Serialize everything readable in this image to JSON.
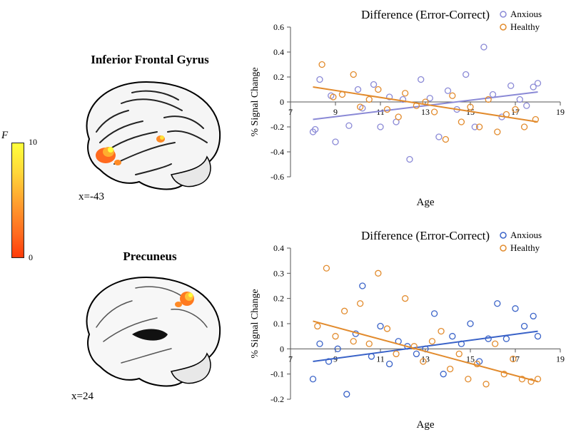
{
  "colorbar": {
    "label": "F",
    "min": 0,
    "max": 10.0,
    "gradient_top": "#ffff3b",
    "gradient_bottom": "#ff3b0a"
  },
  "brain_panels": [
    {
      "title": "Inferior Frontal Gyrus",
      "caption": "x=-43",
      "title_fontsize": 17,
      "caption_fontsize": 15
    },
    {
      "title": "Precuneus",
      "caption": "x=24",
      "title_fontsize": 17,
      "caption_fontsize": 15
    }
  ],
  "charts": [
    {
      "title": "Difference (Error-Correct)",
      "xlabel": "Age",
      "ylabel": "% Signal Change",
      "xlim": [
        7,
        19
      ],
      "ylim": [
        -0.6,
        0.6
      ],
      "xticks": [
        7,
        9,
        11,
        13,
        15,
        17,
        19
      ],
      "yticks": [
        -0.6,
        -0.4,
        -0.2,
        0,
        0.2,
        0.4,
        0.6
      ],
      "legend": [
        {
          "label": "Anxious",
          "color": "#8a89d6",
          "marker": "circle"
        },
        {
          "label": "Healthy",
          "color": "#e28b2d",
          "marker": "circle"
        }
      ],
      "series": [
        {
          "name": "Anxious",
          "color": "#8a89d6",
          "marker_size": 4,
          "line": {
            "x1": 8,
            "y1": -0.14,
            "x2": 18,
            "y2": 0.08,
            "width": 2
          },
          "points": [
            [
              8.0,
              -0.24
            ],
            [
              8.1,
              -0.22
            ],
            [
              8.3,
              0.18
            ],
            [
              8.8,
              0.05
            ],
            [
              9.0,
              -0.32
            ],
            [
              9.6,
              -0.19
            ],
            [
              10.0,
              0.1
            ],
            [
              10.2,
              -0.05
            ],
            [
              10.7,
              0.14
            ],
            [
              11.0,
              -0.2
            ],
            [
              11.4,
              0.04
            ],
            [
              11.7,
              -0.16
            ],
            [
              12.0,
              0.02
            ],
            [
              12.3,
              -0.46
            ],
            [
              12.8,
              0.18
            ],
            [
              13.2,
              0.03
            ],
            [
              13.6,
              -0.28
            ],
            [
              14.0,
              0.09
            ],
            [
              14.4,
              -0.06
            ],
            [
              14.8,
              0.22
            ],
            [
              15.2,
              -0.2
            ],
            [
              15.6,
              0.44
            ],
            [
              16.0,
              0.06
            ],
            [
              16.4,
              -0.12
            ],
            [
              16.8,
              0.13
            ],
            [
              17.2,
              0.02
            ],
            [
              17.5,
              -0.03
            ],
            [
              17.8,
              0.12
            ],
            [
              18.0,
              0.15
            ]
          ]
        },
        {
          "name": "Healthy",
          "color": "#e28b2d",
          "marker_size": 4,
          "line": {
            "x1": 8,
            "y1": 0.12,
            "x2": 18,
            "y2": -0.16,
            "width": 2
          },
          "points": [
            [
              8.4,
              0.3
            ],
            [
              8.9,
              0.04
            ],
            [
              9.3,
              0.06
            ],
            [
              9.8,
              0.22
            ],
            [
              10.1,
              -0.04
            ],
            [
              10.5,
              0.02
            ],
            [
              10.9,
              0.1
            ],
            [
              11.3,
              -0.06
            ],
            [
              11.8,
              -0.12
            ],
            [
              12.1,
              0.07
            ],
            [
              12.6,
              -0.03
            ],
            [
              13.0,
              0.0
            ],
            [
              13.4,
              -0.08
            ],
            [
              13.9,
              -0.3
            ],
            [
              14.2,
              0.05
            ],
            [
              14.6,
              -0.16
            ],
            [
              15.0,
              -0.04
            ],
            [
              15.4,
              -0.2
            ],
            [
              15.8,
              0.02
            ],
            [
              16.2,
              -0.24
            ],
            [
              16.6,
              -0.1
            ],
            [
              17.0,
              -0.06
            ],
            [
              17.4,
              -0.2
            ],
            [
              17.9,
              -0.14
            ]
          ]
        }
      ],
      "background_color": "#ffffff",
      "axis_color": "#555555",
      "tick_fontsize": 12,
      "label_fontsize": 14,
      "title_fontsize": 17
    },
    {
      "title": "Difference (Error-Correct)",
      "xlabel": "Age",
      "ylabel": "% Signal Change",
      "xlim": [
        7,
        19
      ],
      "ylim": [
        -0.2,
        0.4
      ],
      "xticks": [
        7,
        9,
        11,
        13,
        15,
        17,
        19
      ],
      "yticks": [
        -0.2,
        -0.1,
        0,
        0.1,
        0.2,
        0.3,
        0.4
      ],
      "legend": [
        {
          "label": "Anxious",
          "color": "#3a63c8",
          "marker": "circle"
        },
        {
          "label": "Healthy",
          "color": "#e28b2d",
          "marker": "circle"
        }
      ],
      "series": [
        {
          "name": "Anxious",
          "color": "#3a63c8",
          "marker_size": 4,
          "line": {
            "x1": 8,
            "y1": -0.05,
            "x2": 18,
            "y2": 0.07,
            "width": 2
          },
          "points": [
            [
              8.0,
              -0.12
            ],
            [
              8.3,
              0.02
            ],
            [
              8.7,
              -0.05
            ],
            [
              9.1,
              0.0
            ],
            [
              9.5,
              -0.18
            ],
            [
              9.9,
              0.06
            ],
            [
              10.2,
              0.25
            ],
            [
              10.6,
              -0.03
            ],
            [
              11.0,
              0.09
            ],
            [
              11.4,
              -0.06
            ],
            [
              11.8,
              0.03
            ],
            [
              12.2,
              0.01
            ],
            [
              12.6,
              -0.02
            ],
            [
              13.0,
              0.0
            ],
            [
              13.4,
              0.14
            ],
            [
              13.8,
              -0.1
            ],
            [
              14.2,
              0.05
            ],
            [
              14.6,
              0.02
            ],
            [
              15.0,
              0.1
            ],
            [
              15.4,
              -0.05
            ],
            [
              15.8,
              0.04
            ],
            [
              16.2,
              0.18
            ],
            [
              16.6,
              0.04
            ],
            [
              17.0,
              0.16
            ],
            [
              17.4,
              0.09
            ],
            [
              17.8,
              0.13
            ],
            [
              18.0,
              0.05
            ]
          ]
        },
        {
          "name": "Healthy",
          "color": "#e28b2d",
          "marker_size": 4,
          "line": {
            "x1": 8,
            "y1": 0.11,
            "x2": 18,
            "y2": -0.13,
            "width": 2
          },
          "points": [
            [
              8.2,
              0.09
            ],
            [
              8.6,
              0.32
            ],
            [
              9.0,
              0.05
            ],
            [
              9.4,
              0.15
            ],
            [
              9.8,
              0.03
            ],
            [
              10.1,
              0.18
            ],
            [
              10.5,
              0.02
            ],
            [
              10.9,
              0.3
            ],
            [
              11.3,
              0.08
            ],
            [
              11.7,
              -0.02
            ],
            [
              12.1,
              0.2
            ],
            [
              12.5,
              0.01
            ],
            [
              12.9,
              -0.05
            ],
            [
              13.3,
              0.03
            ],
            [
              13.7,
              0.07
            ],
            [
              14.1,
              -0.08
            ],
            [
              14.5,
              -0.02
            ],
            [
              14.9,
              -0.12
            ],
            [
              15.3,
              -0.06
            ],
            [
              15.7,
              -0.14
            ],
            [
              16.1,
              0.02
            ],
            [
              16.5,
              -0.1
            ],
            [
              16.9,
              -0.04
            ],
            [
              17.3,
              -0.12
            ],
            [
              17.7,
              -0.13
            ],
            [
              18.0,
              -0.12
            ]
          ]
        }
      ],
      "background_color": "#ffffff",
      "axis_color": "#555555",
      "tick_fontsize": 12,
      "label_fontsize": 14,
      "title_fontsize": 17
    }
  ]
}
